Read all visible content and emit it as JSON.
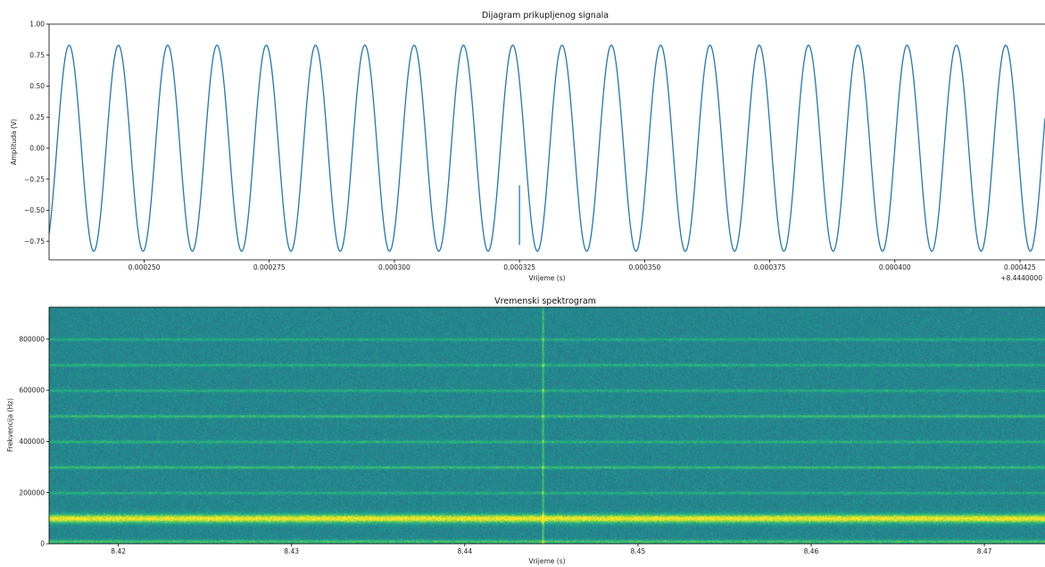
{
  "chart_data": [
    {
      "type": "line",
      "title": "Dijagram prikupljenog signala",
      "xlabel": "Vrijeme (s)",
      "ylabel": "Amplituda (V)",
      "x_offset_label": "+8.4440000",
      "xlim": [
        0.000231,
        0.00043
      ],
      "ylim": [
        -0.9,
        1.0
      ],
      "x_ticks": [
        0.00025,
        0.000275,
        0.0003,
        0.000325,
        0.00035,
        0.000375,
        0.0004,
        0.000425
      ],
      "x_tick_labels": [
        "0.000250",
        "0.000275",
        "0.000300",
        "0.000325",
        "0.000350",
        "0.000375",
        "0.000400",
        "0.000425"
      ],
      "y_ticks": [
        -0.75,
        -0.5,
        -0.25,
        0.0,
        0.25,
        0.5,
        0.75,
        1.0
      ],
      "y_tick_labels": [
        "−0.75",
        "−0.50",
        "−0.25",
        "0.00",
        "0.25",
        "0.50",
        "0.75",
        "1.00"
      ],
      "series": [
        {
          "color": "#1f77b4",
          "waveform": "sine",
          "amplitude": 0.83,
          "period": 9.85e-06,
          "phase_peak_x": 0.000235,
          "min_clip": -0.87,
          "glitch": {
            "x": 0.000325,
            "y": -0.78
          }
        }
      ],
      "grid": false
    },
    {
      "type": "heatmap",
      "title": "Vremenski spektrogram",
      "xlabel": "Vrijeme (s)",
      "ylabel": "Frekvencija (Hz)",
      "xlim": [
        8.416,
        8.4735
      ],
      "ylim": [
        0,
        925000
      ],
      "x_ticks": [
        8.42,
        8.43,
        8.44,
        8.45,
        8.46,
        8.47
      ],
      "x_tick_labels": [
        "8.42",
        "8.43",
        "8.44",
        "8.45",
        "8.46",
        "8.47"
      ],
      "y_ticks": [
        0,
        200000,
        400000,
        600000,
        800000
      ],
      "y_tick_labels": [
        "0",
        "200000",
        "400000",
        "600000",
        "800000"
      ],
      "colormap": "viridis",
      "bands_hz": [
        {
          "freq": 100000,
          "strength": 1.0,
          "width": 18000
        },
        {
          "freq": 10000,
          "strength": 0.55,
          "width": 8000
        },
        {
          "freq": 200000,
          "strength": 0.38,
          "width": 6000
        },
        {
          "freq": 300000,
          "strength": 0.5,
          "width": 6000
        },
        {
          "freq": 400000,
          "strength": 0.42,
          "width": 6000
        },
        {
          "freq": 500000,
          "strength": 0.5,
          "width": 6000
        },
        {
          "freq": 600000,
          "strength": 0.38,
          "width": 6000
        },
        {
          "freq": 700000,
          "strength": 0.4,
          "width": 6000
        },
        {
          "freq": 800000,
          "strength": 0.36,
          "width": 6000
        }
      ],
      "transient_time": 8.4445
    }
  ]
}
